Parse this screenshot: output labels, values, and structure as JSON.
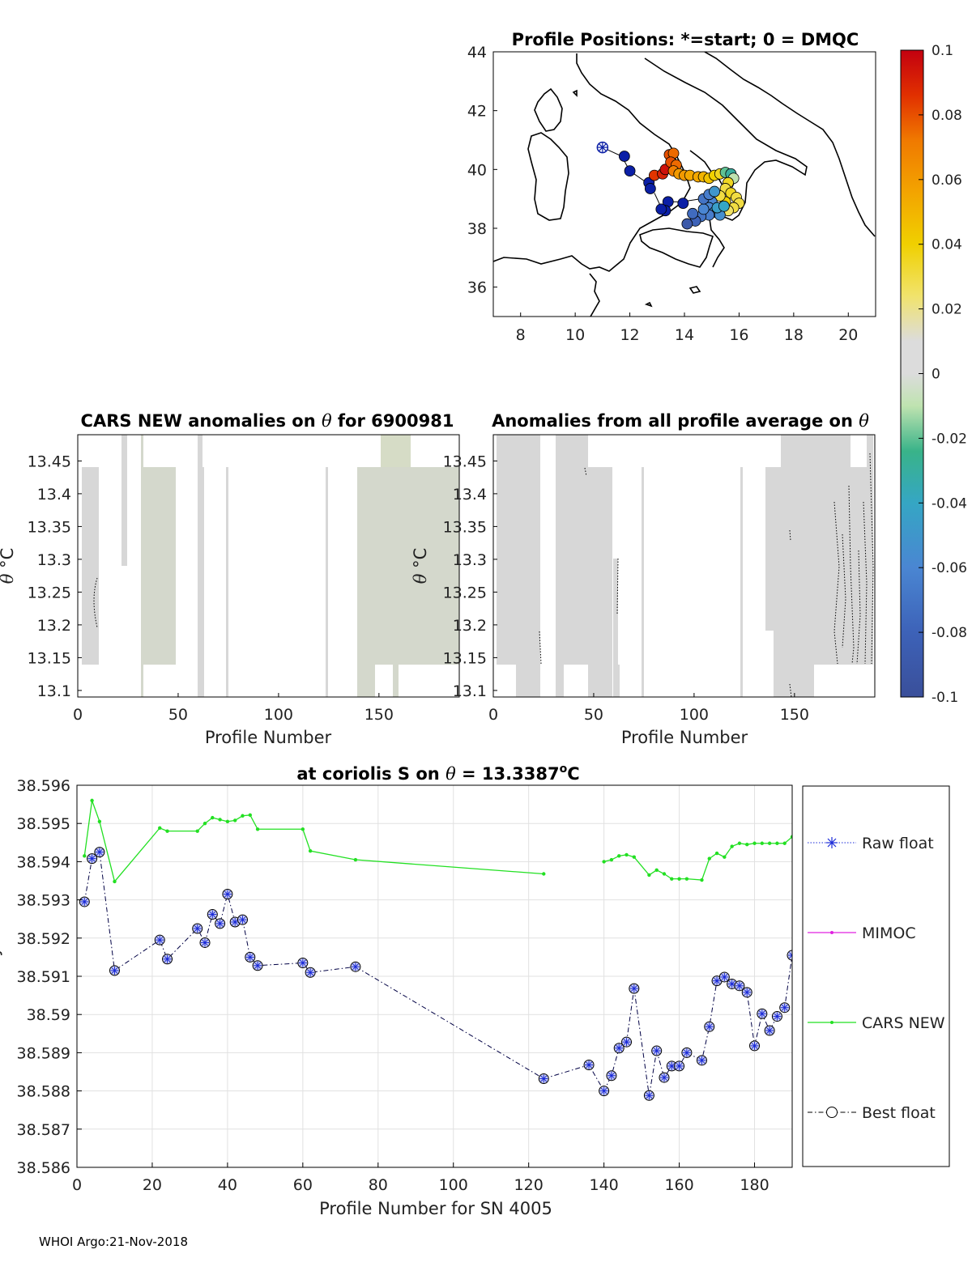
{
  "chart_data": [
    {
      "type": "scatter",
      "panel": "map",
      "title": "Profile Positions: *=start; 0 = DMQC",
      "xlim": [
        7,
        21
      ],
      "ylim": [
        35,
        44
      ],
      "xticks": [
        8,
        10,
        12,
        14,
        16,
        18,
        20
      ],
      "yticks": [
        36,
        38,
        40,
        42,
        44
      ],
      "start": [
        11.0,
        40.75
      ],
      "track": [
        [
          11.0,
          40.75
        ],
        [
          11.7,
          40.45
        ],
        [
          12.0,
          39.95
        ],
        [
          12.7,
          39.5
        ],
        [
          12.9,
          39.8
        ],
        [
          13.3,
          39.95
        ],
        [
          13.5,
          40.35
        ],
        [
          13.6,
          40.55
        ],
        [
          13.9,
          39.8
        ],
        [
          14.5,
          39.75
        ],
        [
          15.0,
          39.75
        ],
        [
          15.6,
          39.85
        ],
        [
          15.9,
          39.7
        ],
        [
          15.7,
          39.3
        ],
        [
          16.0,
          38.9
        ],
        [
          15.6,
          38.6
        ],
        [
          15.1,
          38.4
        ],
        [
          14.8,
          38.6
        ],
        [
          14.3,
          38.2
        ],
        [
          14.0,
          38.15
        ],
        [
          14.6,
          38.5
        ],
        [
          15.2,
          38.9
        ],
        [
          14.9,
          39.1
        ],
        [
          14.6,
          39.0
        ],
        [
          13.9,
          38.9
        ],
        [
          13.4,
          38.9
        ],
        [
          13.2,
          38.6
        ],
        [
          12.9,
          39.2
        ]
      ],
      "points": [
        {
          "lon": 11.0,
          "lat": 40.75,
          "v": -0.1
        },
        {
          "lon": 11.8,
          "lat": 40.45,
          "v": -0.1
        },
        {
          "lon": 12.0,
          "lat": 39.95,
          "v": -0.1
        },
        {
          "lon": 12.7,
          "lat": 39.55,
          "v": -0.1
        },
        {
          "lon": 12.75,
          "lat": 39.35,
          "v": -0.1
        },
        {
          "lon": 12.9,
          "lat": 39.8,
          "v": 0.085
        },
        {
          "lon": 13.2,
          "lat": 39.85,
          "v": 0.09
        },
        {
          "lon": 13.3,
          "lat": 40.0,
          "v": 0.095
        },
        {
          "lon": 13.45,
          "lat": 40.5,
          "v": 0.08
        },
        {
          "lon": 13.6,
          "lat": 40.55,
          "v": 0.075
        },
        {
          "lon": 13.5,
          "lat": 40.25,
          "v": 0.08
        },
        {
          "lon": 13.7,
          "lat": 40.15,
          "v": 0.075
        },
        {
          "lon": 13.6,
          "lat": 39.95,
          "v": 0.07
        },
        {
          "lon": 13.8,
          "lat": 39.85,
          "v": 0.06
        },
        {
          "lon": 14.0,
          "lat": 39.8,
          "v": 0.06
        },
        {
          "lon": 14.2,
          "lat": 39.8,
          "v": 0.055
        },
        {
          "lon": 14.5,
          "lat": 39.75,
          "v": 0.055
        },
        {
          "lon": 14.7,
          "lat": 39.75,
          "v": 0.05
        },
        {
          "lon": 14.9,
          "lat": 39.7,
          "v": 0.045
        },
        {
          "lon": 15.1,
          "lat": 39.8,
          "v": 0.04
        },
        {
          "lon": 15.3,
          "lat": 39.85,
          "v": 0.035
        },
        {
          "lon": 15.5,
          "lat": 39.9,
          "v": -0.02
        },
        {
          "lon": 15.7,
          "lat": 39.85,
          "v": -0.03
        },
        {
          "lon": 15.8,
          "lat": 39.7,
          "v": -0.01
        },
        {
          "lon": 15.6,
          "lat": 39.55,
          "v": 0.035
        },
        {
          "lon": 15.5,
          "lat": 39.35,
          "v": 0.03
        },
        {
          "lon": 15.7,
          "lat": 39.2,
          "v": 0.035
        },
        {
          "lon": 15.9,
          "lat": 39.05,
          "v": 0.03
        },
        {
          "lon": 16.0,
          "lat": 38.85,
          "v": 0.03
        },
        {
          "lon": 15.8,
          "lat": 38.7,
          "v": 0.03
        },
        {
          "lon": 15.6,
          "lat": 38.6,
          "v": 0.025
        },
        {
          "lon": 15.5,
          "lat": 38.9,
          "v": 0.04
        },
        {
          "lon": 15.3,
          "lat": 39.1,
          "v": 0.03
        },
        {
          "lon": 15.0,
          "lat": 38.9,
          "v": -0.06
        },
        {
          "lon": 14.9,
          "lat": 38.7,
          "v": -0.06
        },
        {
          "lon": 15.1,
          "lat": 38.55,
          "v": -0.05
        },
        {
          "lon": 15.3,
          "lat": 38.45,
          "v": -0.055
        },
        {
          "lon": 14.9,
          "lat": 38.45,
          "v": -0.065
        },
        {
          "lon": 14.6,
          "lat": 38.4,
          "v": -0.07
        },
        {
          "lon": 14.4,
          "lat": 38.25,
          "v": -0.08
        },
        {
          "lon": 14.1,
          "lat": 38.15,
          "v": -0.09
        },
        {
          "lon": 14.3,
          "lat": 38.5,
          "v": -0.075
        },
        {
          "lon": 14.7,
          "lat": 38.65,
          "v": -0.06
        },
        {
          "lon": 14.7,
          "lat": 39.0,
          "v": -0.07
        },
        {
          "lon": 14.9,
          "lat": 39.15,
          "v": -0.065
        },
        {
          "lon": 15.1,
          "lat": 39.25,
          "v": -0.05
        },
        {
          "lon": 15.2,
          "lat": 38.7,
          "v": -0.045
        },
        {
          "lon": 15.45,
          "lat": 38.75,
          "v": -0.04
        },
        {
          "lon": 13.95,
          "lat": 38.85,
          "v": -0.1
        },
        {
          "lon": 13.4,
          "lat": 38.9,
          "v": -0.1
        },
        {
          "lon": 13.3,
          "lat": 38.6,
          "v": -0.1
        },
        {
          "lon": 13.15,
          "lat": 38.65,
          "v": -0.1
        }
      ],
      "colorbar": {
        "min": -0.1,
        "max": 0.1,
        "tick_labels": [
          "0.1",
          "0.08",
          "0.06",
          "0.04",
          "0.02",
          "0",
          "-0.02",
          "-0.04",
          "-0.06",
          "-0.08",
          "-0.1"
        ]
      }
    },
    {
      "type": "heatmap",
      "panel": "cars-anomaly",
      "title": "CARS NEW anomalies on θ for 6900981",
      "xlabel": "Profile Number",
      "ylabel": "θ °C",
      "xlim": [
        0,
        190
      ],
      "ylim": [
        13.09,
        13.49
      ],
      "xticks": [
        0,
        50,
        100,
        150
      ],
      "yticks": [
        13.1,
        13.15,
        13.2,
        13.25,
        13.3,
        13.35,
        13.4,
        13.45
      ]
    },
    {
      "type": "heatmap",
      "panel": "profile-anomaly",
      "title": "Anomalies from all profile average on θ",
      "xlabel": "Profile Number",
      "ylabel": "θ °C",
      "xlim": [
        0,
        190
      ],
      "ylim": [
        13.09,
        13.49
      ],
      "xticks": [
        0,
        50,
        100,
        150
      ],
      "yticks": [
        13.1,
        13.15,
        13.2,
        13.25,
        13.3,
        13.35,
        13.4,
        13.45
      ]
    },
    {
      "type": "line",
      "panel": "salinity",
      "title": "at coriolis S on θ = 13.3387°C",
      "xlabel": "Profile Number for SN 4005",
      "ylabel": "Salinity",
      "xlim": [
        0,
        190
      ],
      "ylim": [
        38.586,
        38.596
      ],
      "xticks": [
        0,
        20,
        40,
        60,
        80,
        100,
        120,
        140,
        160,
        180
      ],
      "yticks": [
        38.586,
        38.587,
        38.588,
        38.589,
        38.59,
        38.591,
        38.592,
        38.593,
        38.594,
        38.595,
        38.596
      ],
      "ytick_labels": [
        "38.586",
        "38.587",
        "38.588",
        "38.589",
        "38.59",
        "38.591",
        "38.592",
        "38.593",
        "38.594",
        "38.595",
        "38.596"
      ],
      "legend": [
        "Raw float",
        "MIMOC",
        "CARS NEW",
        "Best float"
      ],
      "legend_position": "right",
      "grid": true,
      "series": [
        {
          "name": "CARS NEW",
          "segments": [
            [
              [
                2,
                38.59415
              ],
              [
                4,
                38.5956
              ],
              [
                6,
                38.59505
              ],
              [
                10,
                38.59348
              ],
              [
                22,
                38.59488
              ],
              [
                24,
                38.5948
              ],
              [
                32,
                38.5948
              ],
              [
                34,
                38.595
              ],
              [
                36,
                38.59515
              ],
              [
                38,
                38.5951
              ],
              [
                40,
                38.59505
              ],
              [
                42,
                38.59508
              ],
              [
                44,
                38.5952
              ],
              [
                46,
                38.59522
              ],
              [
                48,
                38.59485
              ],
              [
                60,
                38.59485
              ],
              [
                62,
                38.59428
              ],
              [
                74,
                38.59405
              ],
              [
                124,
                38.59368
              ]
            ],
            [
              [
                140,
                38.594
              ],
              [
                142,
                38.59405
              ],
              [
                144,
                38.59415
              ],
              [
                146,
                38.59418
              ],
              [
                148,
                38.59412
              ],
              [
                152,
                38.59365
              ],
              [
                154,
                38.59378
              ],
              [
                156,
                38.59368
              ],
              [
                158,
                38.59355
              ],
              [
                160,
                38.59355
              ],
              [
                162,
                38.59355
              ],
              [
                166,
                38.59352
              ],
              [
                168,
                38.59408
              ],
              [
                170,
                38.59422
              ],
              [
                172,
                38.59412
              ],
              [
                174,
                38.5944
              ],
              [
                176,
                38.59448
              ],
              [
                178,
                38.59445
              ],
              [
                180,
                38.59448
              ],
              [
                182,
                38.59448
              ],
              [
                184,
                38.59448
              ],
              [
                186,
                38.59448
              ],
              [
                188,
                38.59448
              ],
              [
                190,
                38.59465
              ]
            ]
          ]
        },
        {
          "name": "Best float",
          "segments": [
            [
              [
                2,
                38.59295
              ],
              [
                4,
                38.59408
              ],
              [
                6,
                38.59425
              ],
              [
                10,
                38.59115
              ],
              [
                22,
                38.59195
              ],
              [
                24,
                38.59145
              ],
              [
                32,
                38.59225
              ],
              [
                34,
                38.59188
              ],
              [
                36,
                38.59262
              ],
              [
                38,
                38.59238
              ],
              [
                40,
                38.59315
              ],
              [
                42,
                38.59242
              ],
              [
                44,
                38.59248
              ],
              [
                46,
                38.5915
              ],
              [
                48,
                38.59128
              ],
              [
                60,
                38.59135
              ],
              [
                62,
                38.5911
              ],
              [
                74,
                38.59125
              ],
              [
                124,
                38.58832
              ],
              [
                136,
                38.58868
              ],
              [
                140,
                38.588
              ],
              [
                142,
                38.5884
              ],
              [
                144,
                38.58912
              ],
              [
                146,
                38.58928
              ],
              [
                148,
                38.59068
              ],
              [
                152,
                38.58788
              ],
              [
                154,
                38.58905
              ],
              [
                156,
                38.58835
              ],
              [
                158,
                38.58865
              ],
              [
                160,
                38.58865
              ],
              [
                162,
                38.589
              ],
              [
                166,
                38.5888
              ],
              [
                168,
                38.58968
              ],
              [
                170,
                38.59088
              ],
              [
                172,
                38.59098
              ],
              [
                174,
                38.5908
              ],
              [
                176,
                38.59075
              ],
              [
                178,
                38.59058
              ],
              [
                180,
                38.58918
              ],
              [
                182,
                38.59002
              ],
              [
                184,
                38.58958
              ],
              [
                186,
                38.58995
              ],
              [
                188,
                38.59018
              ],
              [
                190,
                38.59155
              ]
            ]
          ]
        }
      ]
    }
  ],
  "footer": "WHOI Argo:21-Nov-2018"
}
